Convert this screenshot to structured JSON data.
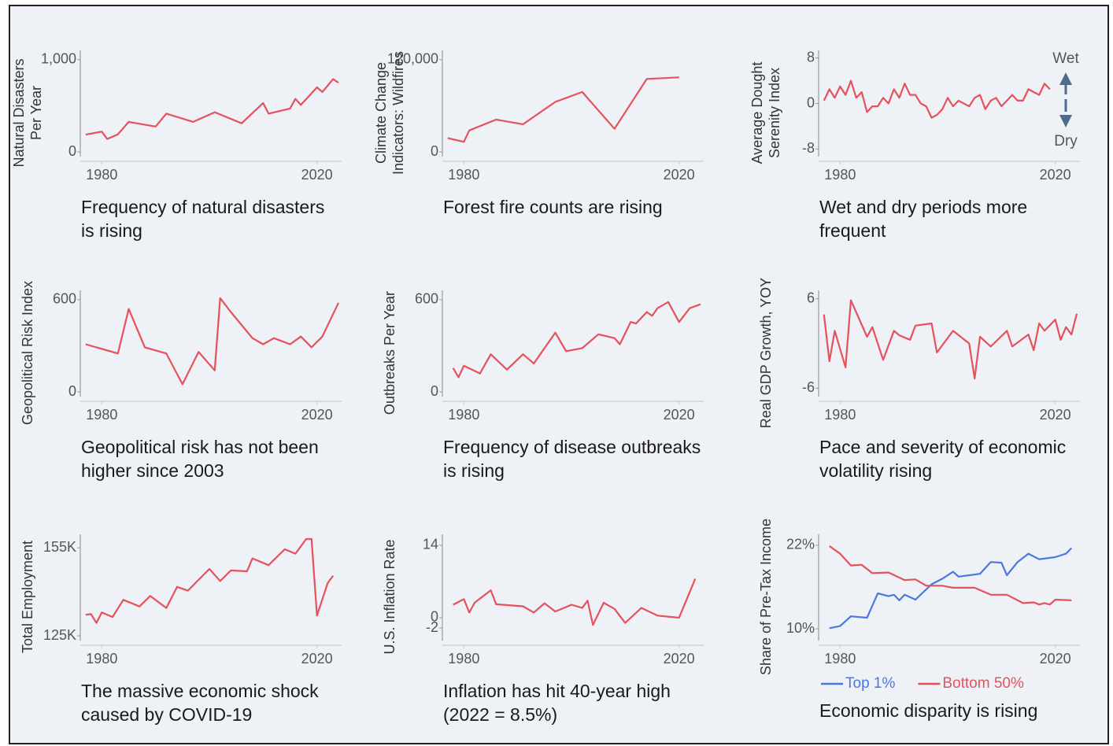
{
  "chart_data": [
    {
      "type": "line",
      "title": [
        "Frequency of natural disasters",
        "is rising"
      ],
      "ylabel": [
        "Natural Disasters",
        "Per Year"
      ],
      "x": [
        1977,
        1980,
        1981,
        1983,
        1985,
        1990,
        1992,
        1997,
        2001,
        2006,
        2010,
        2011,
        2015,
        2016,
        2017,
        2020,
        2021,
        2023,
        2024
      ],
      "series": [
        {
          "color": "#e5515c",
          "values": [
            187,
            220,
            140,
            190,
            325,
            275,
            415,
            325,
            430,
            310,
            530,
            415,
            470,
            575,
            510,
            700,
            650,
            790,
            750
          ]
        }
      ],
      "xlim": [
        1976,
        2024
      ],
      "xticks": [
        1980,
        2020
      ],
      "ylim": [
        0,
        1050
      ],
      "yticks": [
        {
          "value": 1000,
          "label": "1,000"
        },
        0
      ]
    },
    {
      "type": "line",
      "title": [
        "Forest fire counts are rising"
      ],
      "ylabel": [
        "Climate Change",
        "Indicators: Wildfires"
      ],
      "x": [
        1977,
        1980,
        1981,
        1986,
        1991,
        1997,
        2002,
        2008,
        2014,
        2020
      ],
      "series": [
        {
          "color": "#e5515c",
          "values": [
            18000,
            13000,
            28000,
            42000,
            36000,
            65000,
            78000,
            30000,
            95000,
            97000
          ]
        }
      ],
      "xlim": [
        1976,
        2024
      ],
      "xticks": [
        1980,
        2020
      ],
      "ylim": [
        0,
        126000
      ],
      "yticks": [
        {
          "value": 120000,
          "label": "120,000"
        },
        0
      ]
    },
    {
      "type": "line",
      "title": [
        "Wet and dry periods more",
        "frequent"
      ],
      "ylabel": [
        "Average Dought",
        "Serenity Index"
      ],
      "annotations": [
        "Wet",
        "Dry"
      ],
      "x": [
        1977,
        1978,
        1979,
        1980,
        1981,
        1982,
        1983,
        1984,
        1985,
        1986,
        1987,
        1988,
        1989,
        1990,
        1991,
        1992,
        1993,
        1994,
        1995,
        1996,
        1997,
        1998,
        1999,
        2000,
        2001,
        2002,
        2003,
        2004,
        2005,
        2006,
        2007,
        2008,
        2009,
        2010,
        2011,
        2012,
        2013,
        2014,
        2015,
        2016,
        2017,
        2018,
        2019
      ],
      "series": [
        {
          "color": "#e5515c",
          "values": [
            0.5,
            2.5,
            1,
            3,
            1.5,
            4,
            1,
            2,
            -1.5,
            -0.5,
            -0.5,
            1,
            0,
            2.5,
            1,
            3.5,
            1.5,
            1.5,
            0,
            -0.5,
            -2.5,
            -2,
            -1,
            1,
            -0.5,
            0.5,
            0,
            -0.5,
            1,
            1.5,
            -1,
            0.5,
            1,
            -0.5,
            0.5,
            1.5,
            0.5,
            0.5,
            2.5,
            2,
            1.5,
            3.5,
            2.5
          ]
        }
      ],
      "xlim": [
        1976,
        2024
      ],
      "xticks": [
        1980,
        2020
      ],
      "ylim": [
        -8.5,
        8.5
      ],
      "yticks": [
        8,
        0,
        -8
      ]
    },
    {
      "type": "line",
      "title": [
        "Geopolitical risk has not been",
        "higher since 2003"
      ],
      "ylabel": [
        "Geopolitical Risk Index"
      ],
      "x": [
        1977,
        1983,
        1985,
        1988,
        1992,
        1995,
        1998,
        2001,
        2002,
        2004,
        2008,
        2010,
        2012,
        2015,
        2017,
        2019,
        2021,
        2024
      ],
      "series": [
        {
          "color": "#e5515c",
          "values": [
            310,
            250,
            540,
            290,
            250,
            50,
            260,
            140,
            610,
            520,
            350,
            310,
            350,
            310,
            360,
            290,
            360,
            580
          ]
        }
      ],
      "xlim": [
        1976,
        2024
      ],
      "xticks": [
        1980,
        2020
      ],
      "ylim": [
        0,
        630
      ],
      "yticks": [
        600,
        0
      ]
    },
    {
      "type": "line",
      "title": [
        "Frequency of disease outbreaks",
        "is rising"
      ],
      "ylabel": [
        "Outbreaks Per Year"
      ],
      "x": [
        1978,
        1979,
        1980,
        1983,
        1985,
        1988,
        1991,
        1993,
        1997,
        1999,
        2002,
        2005,
        2008,
        2009,
        2011,
        2012,
        2014,
        2015,
        2016,
        2018,
        2020,
        2022,
        2024
      ],
      "series": [
        {
          "color": "#e5515c",
          "values": [
            155,
            95,
            170,
            120,
            245,
            145,
            245,
            185,
            385,
            265,
            285,
            375,
            350,
            310,
            455,
            445,
            520,
            495,
            545,
            585,
            455,
            545,
            570
          ]
        }
      ],
      "xlim": [
        1976,
        2024
      ],
      "xticks": [
        1980,
        2020
      ],
      "ylim": [
        0,
        630
      ],
      "yticks": [
        600,
        0
      ]
    },
    {
      "type": "line",
      "title": [
        "Pace and severity of economic",
        "volatility rising"
      ],
      "ylabel": [
        "Real GDP Growth, YOY"
      ],
      "x": [
        1977,
        1978,
        1979,
        1981,
        1982,
        1985,
        1986,
        1988,
        1990,
        1991,
        1993,
        1994,
        1997,
        1998,
        2001,
        2004,
        2005,
        2006,
        2008,
        2011,
        2012,
        2015,
        2016,
        2017,
        2018,
        2020,
        2021,
        2022,
        2023,
        2024
      ],
      "series": [
        {
          "color": "#e5515c",
          "values": [
            3.9,
            -2.4,
            1.7,
            -3.2,
            5.8,
            0.9,
            2.2,
            -2.2,
            1.7,
            1.1,
            0.5,
            2.4,
            2.7,
            -1.2,
            1.7,
            0,
            -4.7,
            0.9,
            -0.4,
            1.7,
            -0.4,
            1.2,
            -0.9,
            2.7,
            1.7,
            3.2,
            0.5,
            2.2,
            1.2,
            4
          ]
        }
      ],
      "xlim": [
        1976,
        2024
      ],
      "xticks": [
        1980,
        2020
      ],
      "ylim": [
        -6.5,
        6.5
      ],
      "yticks": [
        6,
        -6
      ]
    },
    {
      "type": "line",
      "title": [
        "The massive economic shock",
        "caused by COVID-19"
      ],
      "ylabel": [
        "Total Employment"
      ],
      "x": [
        1977,
        1978,
        1979,
        1980,
        1982,
        1984,
        1987,
        1989,
        1992,
        1994,
        1996,
        2000,
        2002,
        2004,
        2007,
        2008,
        2011,
        2014,
        2016,
        2018,
        2019,
        2020,
        2022,
        2023
      ],
      "series": [
        {
          "color": "#e5515c",
          "values": [
            132200,
            132400,
            129400,
            133000,
            131400,
            137300,
            135000,
            138600,
            134500,
            141700,
            140400,
            147800,
            143700,
            147300,
            147000,
            151400,
            149100,
            154500,
            153000,
            158000,
            158000,
            131900,
            143000,
            145500
          ]
        }
      ],
      "xlim": [
        1976,
        2024
      ],
      "xticks": [
        1980,
        2020
      ],
      "ylim": [
        125000,
        158000
      ],
      "yticks": [
        {
          "value": 155000,
          "label": "155K"
        },
        {
          "value": 125000,
          "label": "125K"
        }
      ]
    },
    {
      "type": "line",
      "title": [
        "Inflation has hit 40-year high",
        "(2022 = 8.5%)"
      ],
      "ylabel": [
        "U.S. Inflation Rate"
      ],
      "x": [
        1978,
        1980,
        1981,
        1982,
        1985,
        1986,
        1991,
        1993,
        1995,
        1997,
        2000,
        2002,
        2003,
        2004,
        2006,
        2008,
        2010,
        2013,
        2016,
        2020,
        2023
      ],
      "series": [
        {
          "color": "#e5515c",
          "values": [
            2.5,
            3.6,
            1,
            2.9,
            5.3,
            2.6,
            2.2,
            1,
            2.8,
            1.2,
            2.5,
            1.9,
            3.3,
            -1.4,
            2.9,
            1.7,
            -1,
            1.9,
            0.4,
            0,
            7.5
          ]
        }
      ],
      "xlim": [
        1976,
        2024
      ],
      "xticks": [
        1980,
        2020
      ],
      "ylim": [
        -3.5,
        15.2
      ],
      "yticks": [
        14,
        0,
        -2
      ]
    },
    {
      "type": "line",
      "title": [
        "Economic disparity is rising"
      ],
      "ylabel": [
        "Share of Pre-Tax Income"
      ],
      "series": [
        {
          "name": "Top 1%",
          "color": "#4a78e0",
          "x": [
            1978,
            1980,
            1982,
            1985,
            1987,
            1989,
            1990,
            1991,
            1992,
            1994,
            1997,
            1999,
            2001,
            2002,
            2006,
            2008,
            2010,
            2011,
            2013,
            2014,
            2015,
            2017,
            2020,
            2022,
            2023
          ],
          "values": [
            10.1,
            10.4,
            11.8,
            11.6,
            15.1,
            14.7,
            14.9,
            14.1,
            14.9,
            14.2,
            16.4,
            17.2,
            18.2,
            17.5,
            17.9,
            19.6,
            19.5,
            17.7,
            19.6,
            20.2,
            20.8,
            20,
            20.3,
            20.8,
            21.6
          ]
        },
        {
          "name": "Bottom 50%",
          "color": "#e5515c",
          "x": [
            1978,
            1980,
            1982,
            1984,
            1986,
            1989,
            1992,
            1994,
            1996,
            1999,
            2001,
            2005,
            2008,
            2011,
            2014,
            2016,
            2017,
            2018,
            2019,
            2020,
            2023
          ],
          "values": [
            21.9,
            20.8,
            19.1,
            19.2,
            18,
            18.1,
            17,
            17.1,
            16.2,
            16.2,
            15.9,
            15.9,
            14.9,
            14.9,
            13.7,
            13.8,
            13.5,
            13.7,
            13.5,
            14.2,
            14.1
          ]
        }
      ],
      "xlim": [
        1976,
        2024
      ],
      "xticks": [
        1980,
        2020
      ],
      "ylim": [
        9,
        22.9
      ],
      "yticks": [
        {
          "value": 22,
          "label": "22%"
        },
        {
          "value": 10,
          "label": "10%"
        }
      ]
    }
  ]
}
